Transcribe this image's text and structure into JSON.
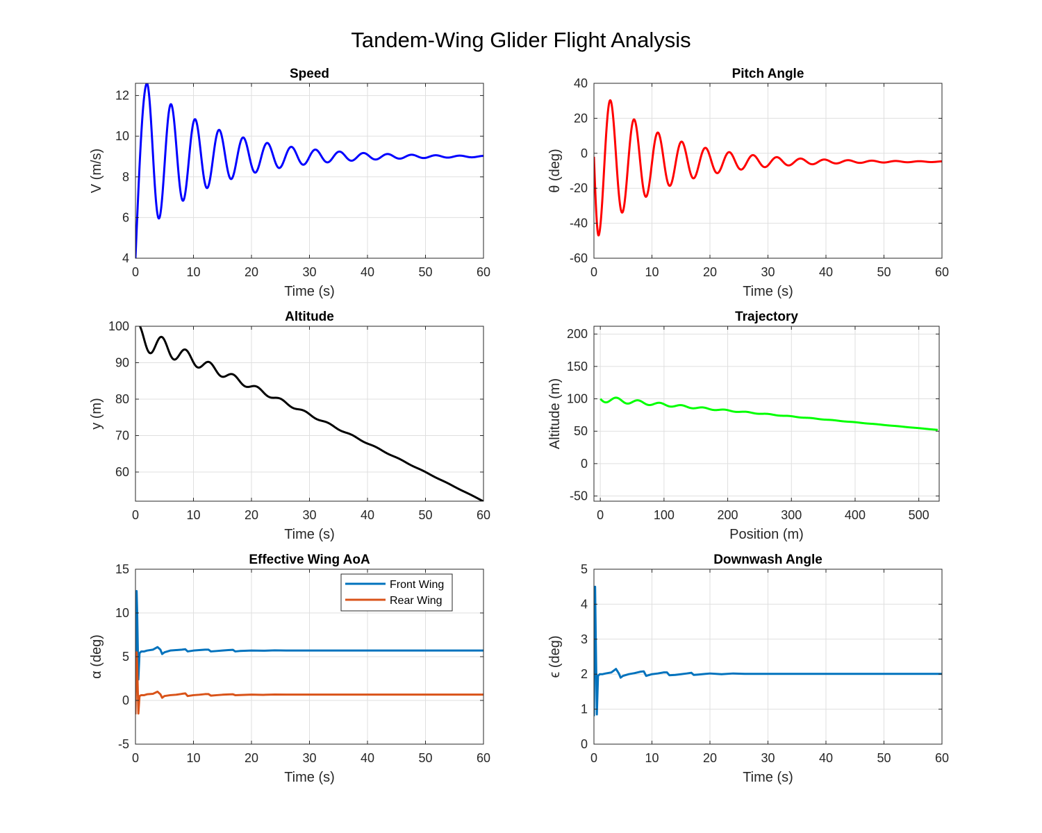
{
  "figure": {
    "title": "Tandem-Wing Glider Flight Analysis"
  },
  "chart_data": [
    {
      "id": "speed",
      "type": "line",
      "title": "Speed",
      "xlabel": "Time (s)",
      "ylabel": "V (m/s)",
      "xlim": [
        0,
        60
      ],
      "ylim": [
        4,
        12.6
      ],
      "xticks": [
        0,
        10,
        20,
        30,
        40,
        50,
        60
      ],
      "yticks": [
        4,
        6,
        8,
        10,
        12
      ],
      "grid": true,
      "series": [
        {
          "color": "#0000ff",
          "model": {
            "kind": "damped",
            "x0": 4.0,
            "base": 9.0,
            "amp": 5.1,
            "tau": 12.3,
            "period": 4.15,
            "rise": 2.0,
            "peak": 12.6
          },
          "x": [
            0,
            2,
            4,
            6,
            8.2,
            10.3,
            12.4,
            14.5,
            16.5,
            18.6,
            20.7,
            22.8,
            24.8,
            26.9,
            29,
            31.1,
            33.2,
            35.2,
            37.3,
            39.4,
            41.5,
            60
          ],
          "y": [
            4.0,
            12.55,
            5.65,
            11.5,
            6.75,
            10.75,
            7.45,
            10.2,
            7.95,
            9.85,
            8.3,
            9.6,
            8.5,
            9.4,
            8.65,
            9.3,
            8.75,
            9.2,
            8.85,
            9.15,
            8.9,
            9.0
          ]
        }
      ]
    },
    {
      "id": "pitch",
      "type": "line",
      "title": "Pitch Angle",
      "xlabel": "Time (s)",
      "ylabel": "θ (deg)",
      "xlim": [
        0,
        60
      ],
      "ylim": [
        -60,
        40
      ],
      "xticks": [
        0,
        10,
        20,
        30,
        40,
        50,
        60
      ],
      "yticks": [
        -60,
        -40,
        -20,
        0,
        20,
        40
      ],
      "grid": true,
      "series": [
        {
          "color": "#ff0000",
          "model": {
            "kind": "pitch",
            "x0": -2.0,
            "base": -4.8,
            "amp": 37.0,
            "tau": 11.0,
            "period": 4.1,
            "drop": 0.8,
            "trough": -47.0
          },
          "x": [
            0,
            0.8,
            3.4,
            5.2,
            7.4,
            9.3,
            11.5,
            13.4,
            15.6,
            17.4,
            19.6,
            21.5,
            60
          ],
          "y": [
            -2,
            -47,
            25.5,
            -33,
            16.3,
            -23.5,
            10,
            -17.5,
            5.5,
            -13.5,
            2.5,
            -10.5,
            -4.8
          ]
        }
      ]
    },
    {
      "id": "altitude",
      "type": "line",
      "title": "Altitude",
      "xlabel": "Time (s)",
      "ylabel": "y (m)",
      "xlim": [
        0,
        60
      ],
      "ylim": [
        52,
        100
      ],
      "xticks": [
        0,
        10,
        20,
        30,
        40,
        50,
        60
      ],
      "yticks": [
        60,
        70,
        80,
        90,
        100
      ],
      "grid": true,
      "series": [
        {
          "color": "#000000",
          "model": {
            "kind": "altitude",
            "x0": 100,
            "slope": -0.8,
            "amp": 5.6,
            "tau": 12.0,
            "period": 4.1
          },
          "x": [
            0,
            2.1,
            4.2,
            6.3,
            8.4,
            10.5,
            12.5,
            20,
            30,
            40,
            50,
            60
          ],
          "y": [
            100,
            91,
            95.5,
            88.5,
            91.5,
            86,
            87.8,
            81.2,
            73.5,
            66.2,
            59.5,
            52
          ]
        }
      ]
    },
    {
      "id": "trajectory",
      "type": "line",
      "title": "Trajectory",
      "xlabel": "Position (m)",
      "ylabel": "Altitude (m)",
      "xlim": [
        -10,
        532
      ],
      "ylim": [
        -58,
        212
      ],
      "xticks": [
        0,
        100,
        200,
        300,
        400,
        500
      ],
      "yticks": [
        -50,
        0,
        50,
        100,
        150,
        200
      ],
      "grid": true,
      "series": [
        {
          "color": "#00ff00",
          "model": {
            "kind": "trajectory",
            "x0": 0,
            "x1": 530,
            "y0": 100,
            "y1": 52,
            "amp": 5.0,
            "decay": 120,
            "wavelength": 34
          },
          "x": [
            0,
            15,
            33,
            50,
            70,
            100,
            200,
            300,
            400,
            530
          ],
          "y": [
            100,
            92,
            95.5,
            89,
            91.5,
            87.5,
            79,
            70.5,
            62.5,
            52
          ]
        }
      ]
    },
    {
      "id": "aoa",
      "type": "line",
      "title": "Effective Wing AoA",
      "xlabel": "Time (s)",
      "ylabel": "α (deg)",
      "xlim": [
        0,
        60
      ],
      "ylim": [
        -5,
        15
      ],
      "xticks": [
        0,
        10,
        20,
        30,
        40,
        50,
        60
      ],
      "yticks": [
        -5,
        0,
        5,
        10,
        15
      ],
      "grid": true,
      "legend": {
        "position": "top-right",
        "entries": [
          "Front Wing",
          "Rear Wing"
        ]
      },
      "series": [
        {
          "name": "Front Wing",
          "color": "#0072bd",
          "x": [
            0,
            0.1,
            0.2,
            0.3,
            0.5,
            0.7,
            1,
            1.5,
            2,
            3,
            3.8,
            4.3,
            4.6,
            5,
            6,
            7,
            8,
            8.6,
            9,
            10,
            11,
            12,
            12.6,
            13,
            14,
            15,
            16,
            16.8,
            17.2,
            18,
            20,
            22,
            24,
            26,
            28,
            30,
            35,
            40,
            50,
            60
          ],
          "y": [
            2.5,
            8.5,
            12.5,
            10,
            2.4,
            5.4,
            5.6,
            5.6,
            5.7,
            5.8,
            6.1,
            5.8,
            5.3,
            5.5,
            5.7,
            5.75,
            5.8,
            5.85,
            5.6,
            5.7,
            5.75,
            5.8,
            5.8,
            5.6,
            5.65,
            5.7,
            5.75,
            5.78,
            5.6,
            5.65,
            5.7,
            5.68,
            5.72,
            5.7,
            5.7,
            5.7,
            5.7,
            5.7,
            5.7,
            5.7
          ]
        },
        {
          "name": "Rear Wing",
          "color": "#d95319",
          "x": [
            0,
            0.1,
            0.2,
            0.3,
            0.5,
            0.7,
            1,
            1.5,
            2,
            3,
            3.8,
            4.3,
            4.6,
            5,
            6,
            7,
            8,
            8.6,
            9,
            10,
            11,
            12,
            12.6,
            13,
            14,
            15,
            16,
            16.8,
            17.2,
            18,
            20,
            22,
            24,
            26,
            28,
            30,
            35,
            40,
            50,
            60
          ],
          "y": [
            -1.6,
            3.5,
            5.5,
            4.0,
            -1.5,
            0.5,
            0.6,
            0.6,
            0.7,
            0.75,
            1.0,
            0.7,
            0.3,
            0.5,
            0.6,
            0.65,
            0.75,
            0.8,
            0.5,
            0.6,
            0.65,
            0.72,
            0.72,
            0.55,
            0.6,
            0.65,
            0.68,
            0.7,
            0.6,
            0.62,
            0.66,
            0.64,
            0.67,
            0.66,
            0.66,
            0.66,
            0.66,
            0.66,
            0.66,
            0.66
          ]
        }
      ]
    },
    {
      "id": "downwash",
      "type": "line",
      "title": "Downwash Angle",
      "xlabel": "Time (s)",
      "ylabel": "ϵ (deg)",
      "xlim": [
        0,
        60
      ],
      "ylim": [
        0,
        5
      ],
      "xticks": [
        0,
        10,
        20,
        30,
        40,
        50,
        60
      ],
      "yticks": [
        0,
        1,
        2,
        3,
        4,
        5
      ],
      "grid": true,
      "series": [
        {
          "color": "#0072bd",
          "x": [
            0,
            0.1,
            0.2,
            0.3,
            0.5,
            0.7,
            1,
            1.5,
            2,
            3,
            3.8,
            4.3,
            4.6,
            5,
            6,
            7,
            8,
            8.6,
            9,
            10,
            11,
            12,
            12.6,
            13,
            14,
            15,
            16,
            16.8,
            17.2,
            18,
            20,
            22,
            24,
            26,
            28,
            30,
            35,
            40,
            50,
            60
          ],
          "y": [
            0.8,
            3.0,
            4.5,
            3.2,
            0.85,
            1.95,
            2.0,
            2.0,
            2.02,
            2.05,
            2.15,
            2.02,
            1.9,
            1.95,
            2.0,
            2.03,
            2.07,
            2.08,
            1.95,
            2.0,
            2.02,
            2.05,
            2.05,
            1.97,
            1.98,
            2.0,
            2.02,
            2.04,
            1.98,
            1.99,
            2.02,
            2.0,
            2.02,
            2.01,
            2.01,
            2.01,
            2.01,
            2.01,
            2.01,
            2.01
          ]
        }
      ]
    }
  ]
}
